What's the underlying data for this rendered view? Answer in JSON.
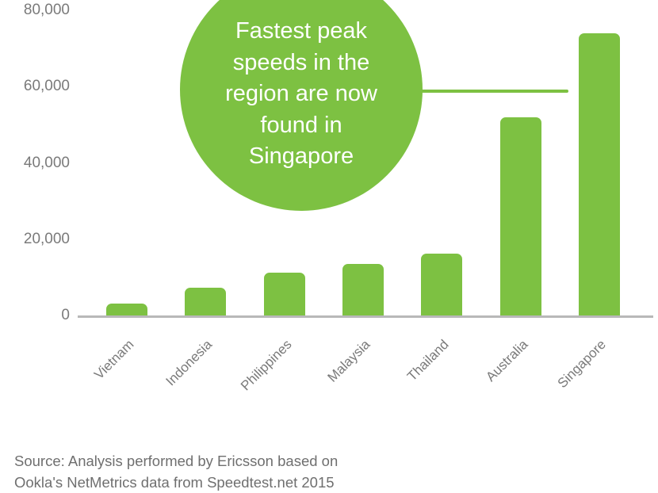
{
  "chart_data": {
    "type": "bar",
    "title": "",
    "xlabel": "",
    "ylabel": "",
    "ylim": [
      0,
      80000
    ],
    "yticks": [
      "0",
      "20,000",
      "40,000",
      "60,000",
      "80,000"
    ],
    "categories": [
      "Vietnam",
      "Indonesia",
      "Philippines",
      "Malaysia",
      "Thailand",
      "Australia",
      "Singapore"
    ],
    "values": [
      3100,
      7300,
      11200,
      13500,
      16300,
      52000,
      74000
    ],
    "bar_color": "#7dc142",
    "grid": false,
    "legend": null,
    "annotation": "Fastest peak speeds in the region are now found in Singapore"
  },
  "axis": {
    "yticks": [
      {
        "label": "80,000",
        "value": 80000
      },
      {
        "label": "60,000",
        "value": 60000
      },
      {
        "label": "40,000",
        "value": 40000
      },
      {
        "label": "20,000",
        "value": 20000
      },
      {
        "label": "0",
        "value": 0
      }
    ]
  },
  "callout": {
    "lines": [
      "Fastest peak",
      "speeds in the",
      "region are now",
      "found in",
      "Singapore"
    ]
  },
  "source": {
    "line1": "Source: Analysis performed by Ericsson based on",
    "line2": "Ookla's NetMetrics data from Speedtest.net 2015"
  }
}
